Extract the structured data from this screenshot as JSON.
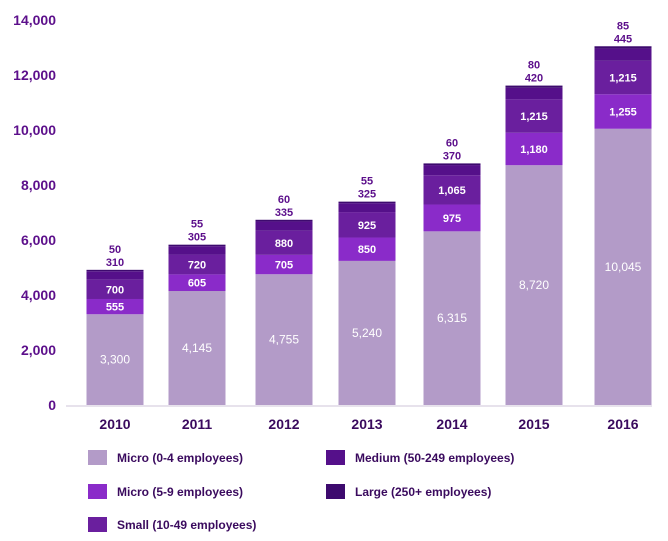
{
  "chart_data": {
    "type": "bar",
    "stacked": true,
    "categories": [
      "2010",
      "2011",
      "2012",
      "2013",
      "2014",
      "2015",
      "2016"
    ],
    "ylim": [
      0,
      14000
    ],
    "yticks": [
      "0",
      "2,000",
      "4,000",
      "6,000",
      "8,000",
      "10,000",
      "12,000",
      "14,000"
    ],
    "series": [
      {
        "name": "Micro (0-4 employees)",
        "color": "#b39bc8",
        "values": [
          3300,
          4145,
          4755,
          5240,
          6315,
          8720,
          10045
        ],
        "labels": [
          "3,300",
          "4,145",
          "4,755",
          "5,240",
          "6,315",
          "8,720",
          "10,045"
        ]
      },
      {
        "name": "Micro (5-9 employees)",
        "color": "#8a2bc9",
        "values": [
          555,
          605,
          705,
          850,
          975,
          1180,
          1255
        ],
        "labels": [
          "555",
          "605",
          "705",
          "850",
          "975",
          "1,180",
          "1,255"
        ]
      },
      {
        "name": "Small (10-49 employees)",
        "color": "#6a1f9e",
        "values": [
          700,
          720,
          880,
          925,
          1065,
          1215,
          1215
        ],
        "labels": [
          "700",
          "720",
          "880",
          "925",
          "1,065",
          "1,215",
          "1,215"
        ]
      },
      {
        "name": "Medium (50-249 employees)",
        "color": "#55108a",
        "values": [
          310,
          305,
          335,
          325,
          370,
          420,
          445
        ],
        "labels": [
          "310",
          "305",
          "335",
          "325",
          "370",
          "420",
          "445"
        ]
      },
      {
        "name": "Large (250+ employees)",
        "color": "#3d0a6e",
        "values": [
          50,
          55,
          60,
          55,
          60,
          80,
          85
        ],
        "labels": [
          "50",
          "55",
          "60",
          "55",
          "60",
          "80",
          "85"
        ]
      }
    ],
    "legend_position": "bottom",
    "grid": false
  }
}
